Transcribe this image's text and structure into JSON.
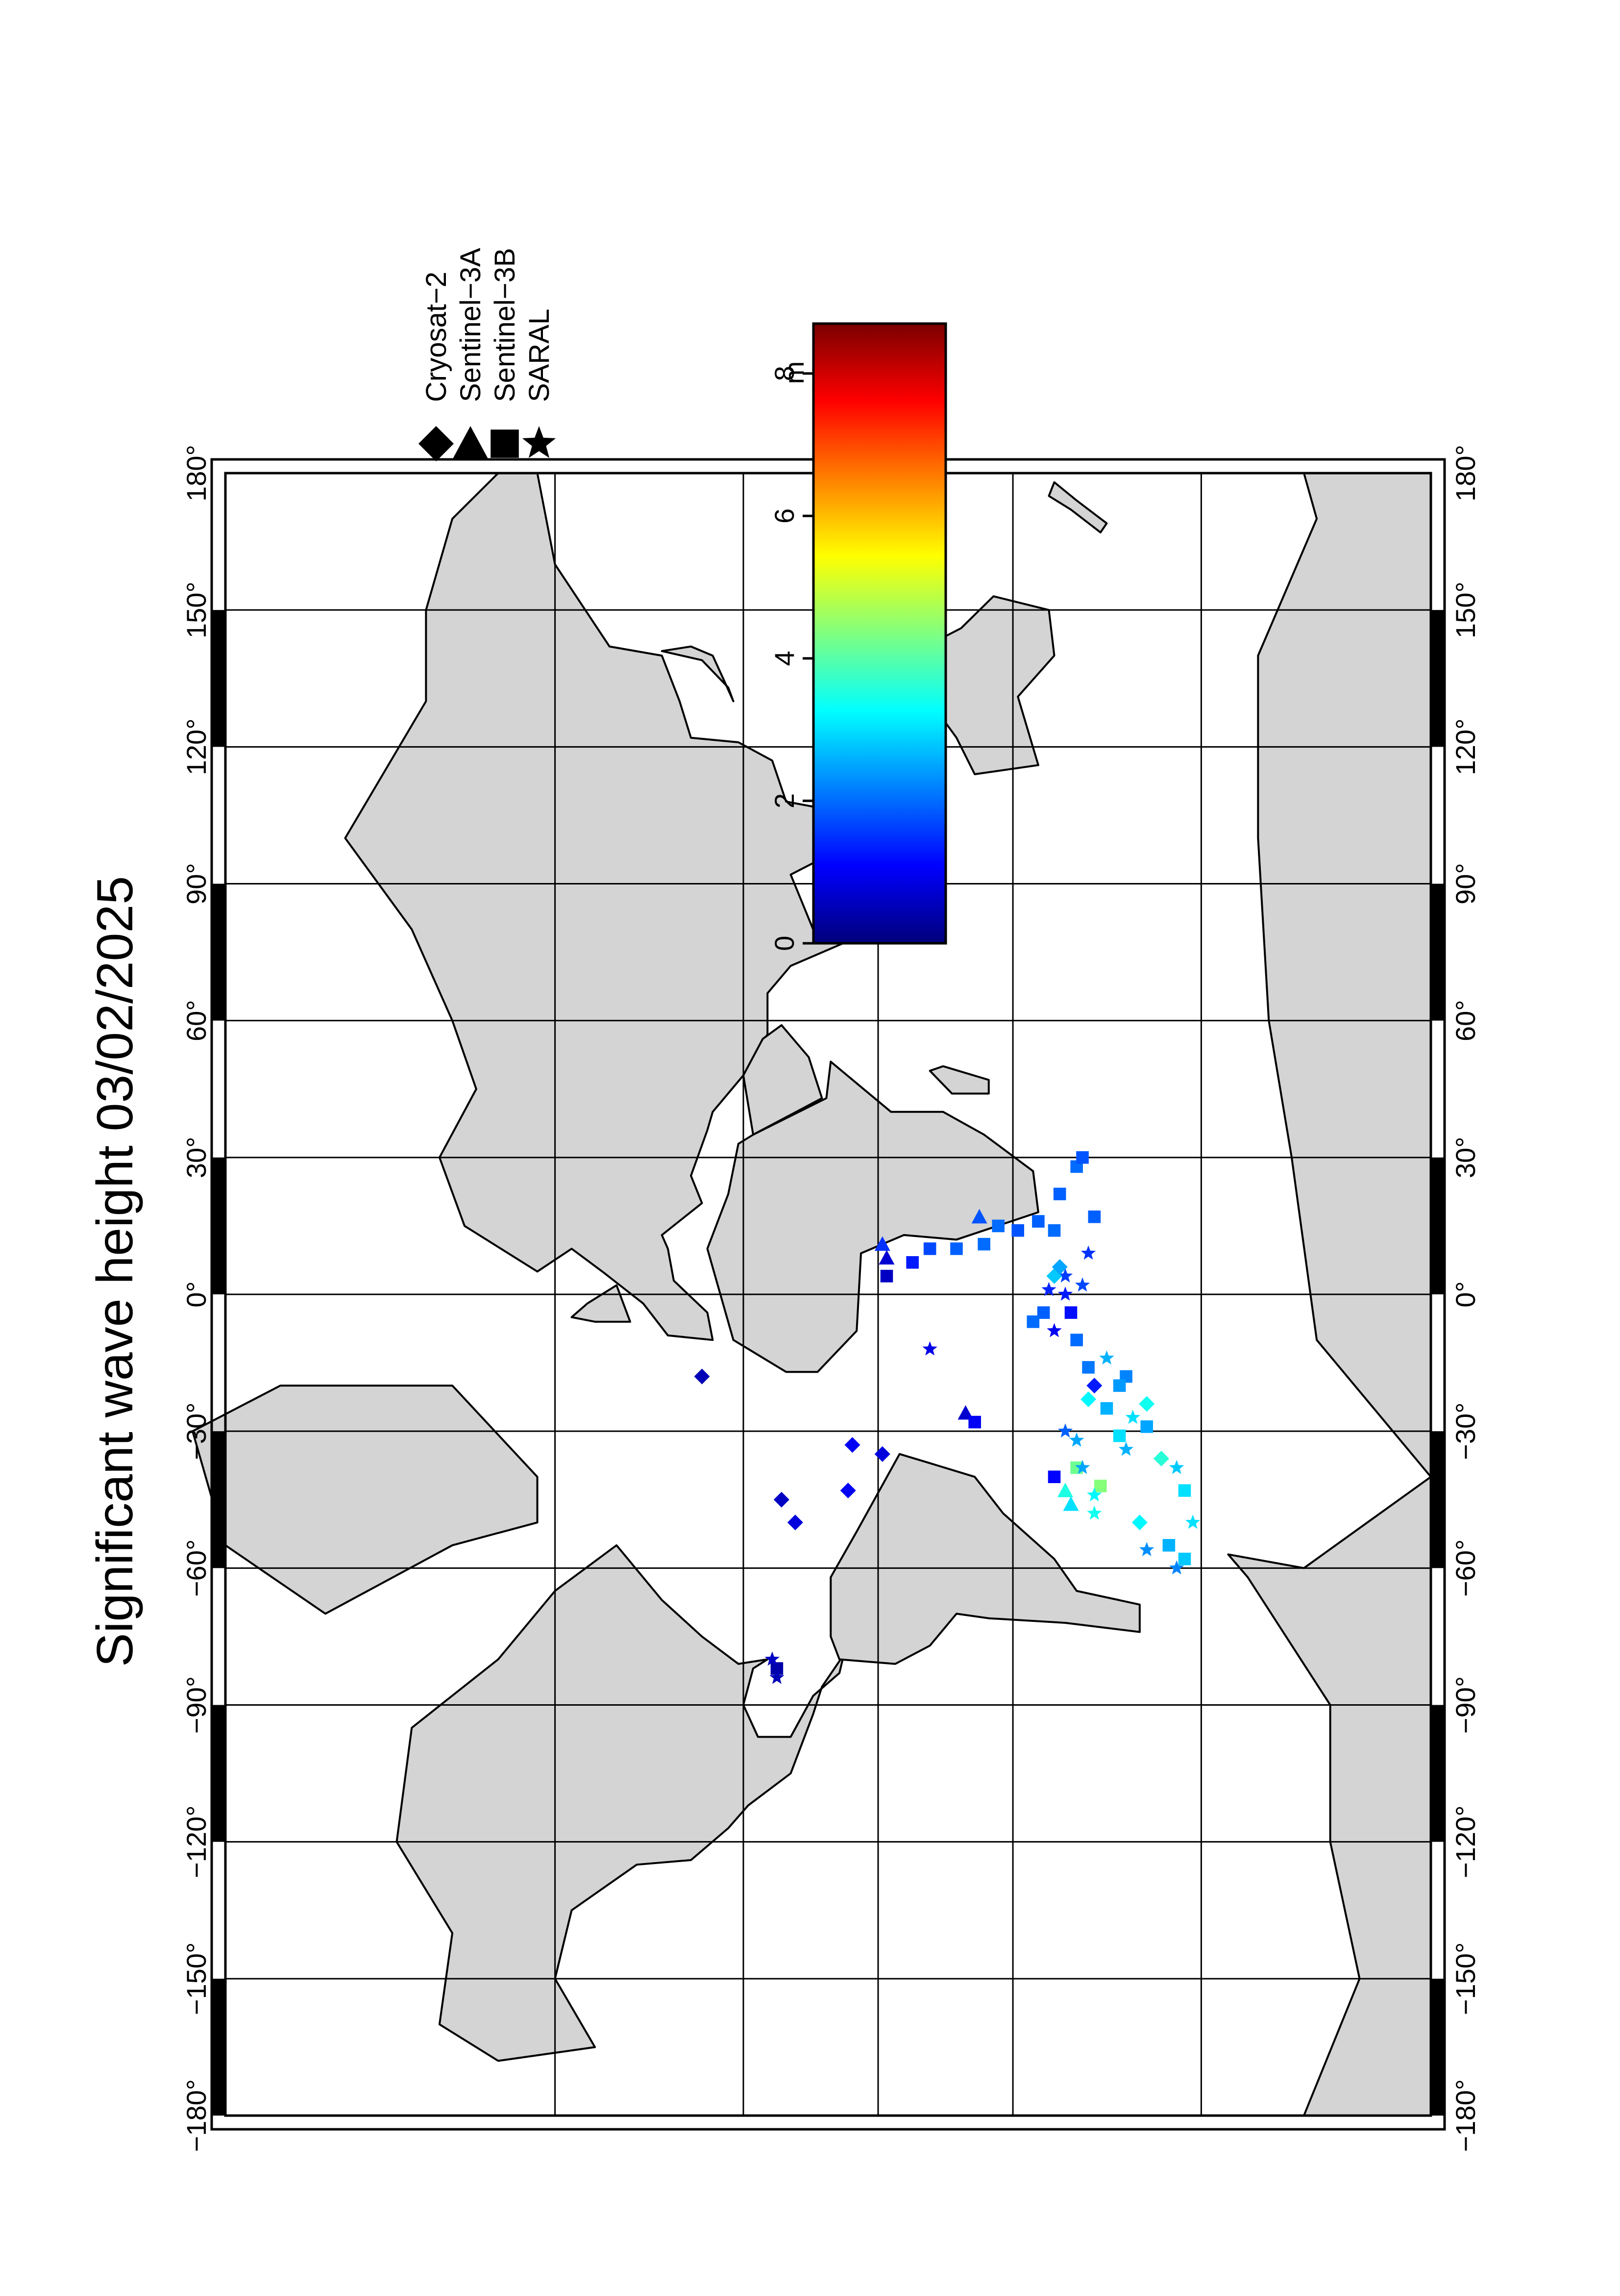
{
  "title": "Significant wave height 03/02/2025",
  "lon_ticks": [
    "−180°",
    "−150°",
    "−120°",
    "−90°",
    "−60°",
    "−30°",
    "0°",
    "30°",
    "60°",
    "90°",
    "120°",
    "150°",
    "180°"
  ],
  "legend": {
    "satellites": [
      {
        "name": "Cryosat−2",
        "symbol": "diamond-icon"
      },
      {
        "name": "Sentinel−3A",
        "symbol": "triangle-left-icon"
      },
      {
        "name": "Sentinel−3B",
        "symbol": "square-icon"
      },
      {
        "name": "SARAL",
        "symbol": "star-icon"
      }
    ]
  },
  "colorbar": {
    "unit": "m",
    "ticks": [
      "8",
      "6",
      "4",
      "2",
      "0"
    ],
    "range": [
      0,
      8.7
    ],
    "colors": [
      "#00007a",
      "#0000ff",
      "#0080ff",
      "#00ffff",
      "#80ff80",
      "#ffff00",
      "#ff8000",
      "#ff0000",
      "#7a0000"
    ]
  },
  "observations": [
    {
      "sat": "diamond",
      "lon": -18,
      "lat": 38,
      "v": 0.5
    },
    {
      "sat": "diamond",
      "lon": -45,
      "lat": 22,
      "v": 0.6
    },
    {
      "sat": "diamond",
      "lon": -50,
      "lat": 19,
      "v": 0.8
    },
    {
      "sat": "diamond",
      "lon": -43,
      "lat": 7,
      "v": 1.0
    },
    {
      "sat": "diamond",
      "lon": -33,
      "lat": 6,
      "v": 1.0
    },
    {
      "sat": "diamond",
      "lon": -35,
      "lat": -1,
      "v": 0.8
    },
    {
      "sat": "triangle",
      "lon": 11,
      "lat": -1,
      "v": 1.5
    },
    {
      "sat": "triangle",
      "lon": 8,
      "lat": -2,
      "v": 0.7
    },
    {
      "sat": "square",
      "lon": 4,
      "lat": -2,
      "v": 0.6
    },
    {
      "sat": "square",
      "lon": 7,
      "lat": -8,
      "v": 1.3
    },
    {
      "sat": "square",
      "lon": 10,
      "lat": -12,
      "v": 1.7
    },
    {
      "sat": "square",
      "lon": 10,
      "lat": -18,
      "v": 1.9
    },
    {
      "sat": "square",
      "lon": 11,
      "lat": -24,
      "v": 2.0
    },
    {
      "sat": "triangle",
      "lon": 17,
      "lat": -23,
      "v": 1.8
    },
    {
      "sat": "square",
      "lon": 15,
      "lat": -27,
      "v": 2.0
    },
    {
      "sat": "square",
      "lon": 14,
      "lat": -31,
      "v": 1.8
    },
    {
      "sat": "square",
      "lon": 16,
      "lat": -35,
      "v": 1.9
    },
    {
      "sat": "square",
      "lon": 22,
      "lat": -39,
      "v": 1.9
    },
    {
      "sat": "square",
      "lon": 28,
      "lat": -42,
      "v": 2.0
    },
    {
      "sat": "square",
      "lon": 30,
      "lat": -43,
      "v": 1.8
    },
    {
      "sat": "square",
      "lon": 17,
      "lat": -45,
      "v": 1.9
    },
    {
      "sat": "square",
      "lon": 14,
      "lat": -38,
      "v": 2.0
    },
    {
      "sat": "star",
      "lon": 0,
      "lat": -40,
      "v": 1.3
    },
    {
      "sat": "star",
      "lon": 2,
      "lat": -43,
      "v": 1.7
    },
    {
      "sat": "star",
      "lon": 4,
      "lat": -40,
      "v": 1.6
    },
    {
      "sat": "star",
      "lon": 1,
      "lat": -37,
      "v": 1.4
    },
    {
      "sat": "diamond",
      "lon": 4,
      "lat": -38,
      "v": 2.8
    },
    {
      "sat": "diamond",
      "lon": 6,
      "lat": -39,
      "v": 2.5
    },
    {
      "sat": "square",
      "lon": -4,
      "lat": -36,
      "v": 1.9
    },
    {
      "sat": "square",
      "lon": -6,
      "lat": -34,
      "v": 2.0
    },
    {
      "sat": "star",
      "lon": -12,
      "lat": -12,
      "v": 0.9
    },
    {
      "sat": "triangle",
      "lon": -26,
      "lat": -20,
      "v": 0.7
    },
    {
      "sat": "square",
      "lon": -28,
      "lat": -22,
      "v": 1.0
    },
    {
      "sat": "square",
      "lon": -40,
      "lat": -38,
      "v": 1.1
    },
    {
      "sat": "triangle",
      "lon": -43,
      "lat": -40,
      "v": 3.5
    },
    {
      "sat": "triangle",
      "lon": -46,
      "lat": -41,
      "v": 3.0
    },
    {
      "sat": "square",
      "lon": -38,
      "lat": -42,
      "v": 4.2
    },
    {
      "sat": "square",
      "lon": -42,
      "lat": -46,
      "v": 4.4
    },
    {
      "sat": "star",
      "lon": -44,
      "lat": -45,
      "v": 3.2
    },
    {
      "sat": "star",
      "lon": -48,
      "lat": -45,
      "v": 3.4
    },
    {
      "sat": "diamond",
      "lon": -23,
      "lat": -44,
      "v": 3.2
    },
    {
      "sat": "diamond",
      "lon": -20,
      "lat": -45,
      "v": 1.3
    },
    {
      "sat": "star",
      "lon": -30,
      "lat": -40,
      "v": 1.9
    },
    {
      "sat": "star",
      "lon": -32,
      "lat": -42,
      "v": 2.5
    },
    {
      "sat": "star",
      "lon": -38,
      "lat": -43,
      "v": 2.5
    },
    {
      "sat": "square",
      "lon": -10,
      "lat": -42,
      "v": 2.0
    },
    {
      "sat": "square",
      "lon": -16,
      "lat": -44,
      "v": 2.1
    },
    {
      "sat": "square",
      "lon": -18,
      "lat": -50,
      "v": 2.2
    },
    {
      "sat": "star",
      "lon": -14,
      "lat": -47,
      "v": 2.6
    },
    {
      "sat": "square",
      "lon": -20,
      "lat": -49,
      "v": 2.4
    },
    {
      "sat": "square",
      "lon": -25,
      "lat": -47,
      "v": 2.6
    },
    {
      "sat": "diamond",
      "lon": -24,
      "lat": -53,
      "v": 3.4
    },
    {
      "sat": "star",
      "lon": -27,
      "lat": -51,
      "v": 3.0
    },
    {
      "sat": "square",
      "lon": -29,
      "lat": -53,
      "v": 2.5
    },
    {
      "sat": "square",
      "lon": -31,
      "lat": -49,
      "v": 3.0
    },
    {
      "sat": "star",
      "lon": -34,
      "lat": -50,
      "v": 2.6
    },
    {
      "sat": "diamond",
      "lon": -36,
      "lat": -55,
      "v": 3.6
    },
    {
      "sat": "star",
      "lon": -38,
      "lat": -57,
      "v": 2.8
    },
    {
      "sat": "square",
      "lon": -43,
      "lat": -58,
      "v": 3.0
    },
    {
      "sat": "diamond",
      "lon": -50,
      "lat": -52,
      "v": 3.2
    },
    {
      "sat": "star",
      "lon": -56,
      "lat": -53,
      "v": 2.3
    },
    {
      "sat": "square",
      "lon": -58,
      "lat": -58,
      "v": 2.8
    },
    {
      "sat": "square",
      "lon": -55,
      "lat": -56,
      "v": 2.6
    },
    {
      "sat": "star",
      "lon": -50,
      "lat": -59,
      "v": 3.0
    },
    {
      "sat": "star",
      "lon": -60,
      "lat": -57,
      "v": 2.2
    },
    {
      "sat": "star",
      "lon": -8,
      "lat": -38,
      "v": 1.0
    },
    {
      "sat": "square",
      "lon": -4,
      "lat": -41,
      "v": 1.2
    },
    {
      "sat": "star",
      "lon": 9,
      "lat": -44,
      "v": 1.5
    },
    {
      "sat": "square",
      "lon": -82,
      "lat": 23,
      "v": 0.4
    },
    {
      "sat": "star",
      "lon": -84,
      "lat": 23,
      "v": 0.5
    },
    {
      "sat": "star",
      "lon": -80,
      "lat": 24,
      "v": 0.6
    }
  ]
}
